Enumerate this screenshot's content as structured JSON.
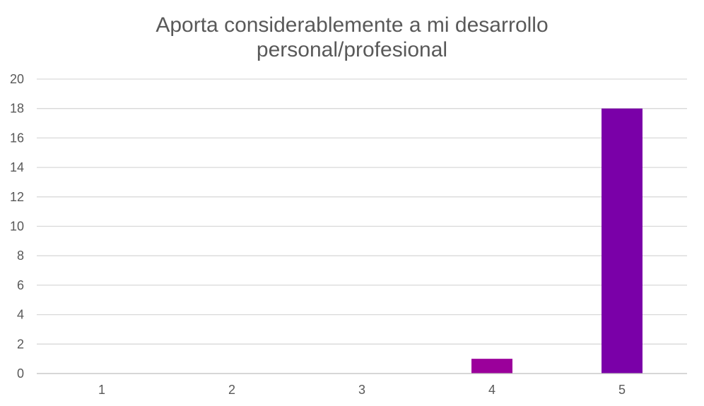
{
  "chart_data": {
    "type": "bar",
    "title": [
      "Aporta considerablemente a mi desarrollo",
      "personal/profesional"
    ],
    "categories": [
      "1",
      "2",
      "3",
      "4",
      "5"
    ],
    "series": [
      {
        "values": [
          0,
          0,
          0,
          1,
          18
        ],
        "colors": [
          "#9b009b",
          "#9b009b",
          "#9b009b",
          "#9b009b",
          "#7a00a8"
        ]
      }
    ],
    "ylim": [
      0,
      20
    ],
    "ytick_step": 2,
    "y_ticks": [
      "0",
      "2",
      "4",
      "6",
      "8",
      "10",
      "12",
      "14",
      "16",
      "18",
      "20"
    ],
    "grid": true,
    "legend": "none",
    "xlabel": "",
    "ylabel": ""
  }
}
